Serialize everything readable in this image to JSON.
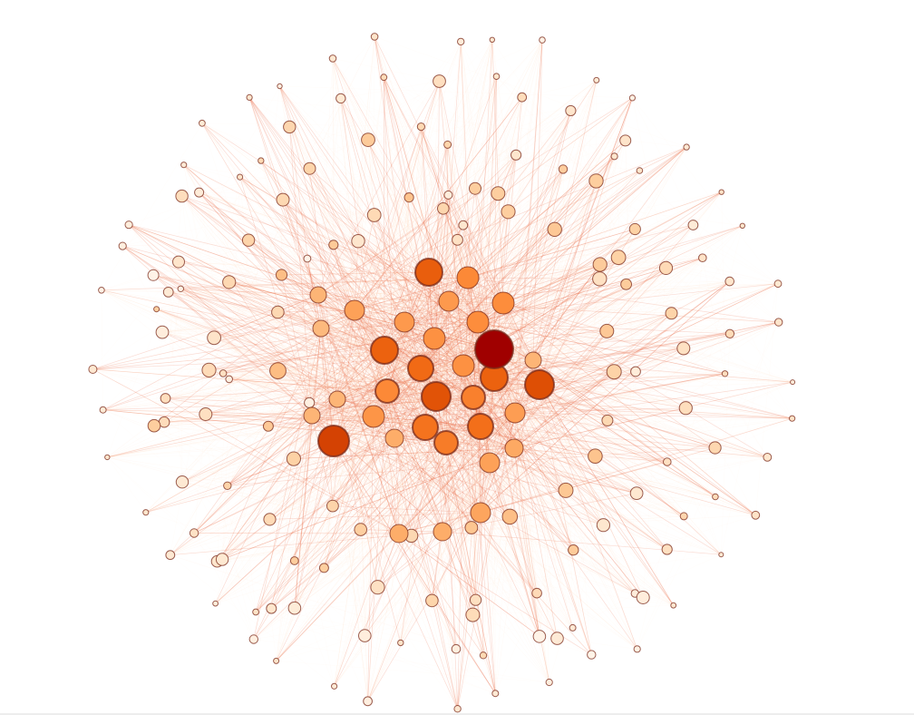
{
  "graph": {
    "type": "network",
    "node_count": 190,
    "hub_count": 34,
    "seed": 1234,
    "colors": {
      "background": "#ffffff",
      "edge": "#e8603c",
      "edge_faint": "#fdd0a2",
      "node_stroke": "#7a2a1a",
      "scale": [
        "#fff5eb",
        "#fdd0a2",
        "#fdae6b",
        "#fd8d3c",
        "#f16913",
        "#d94801",
        "#a50f15"
      ],
      "top_hub": "#a00000"
    }
  }
}
